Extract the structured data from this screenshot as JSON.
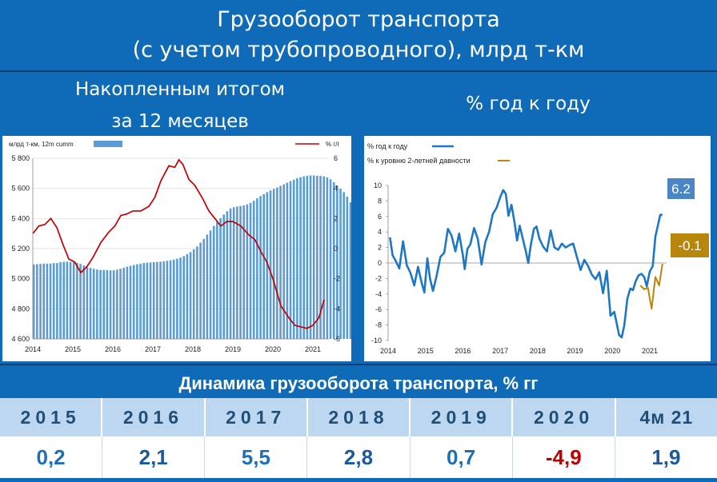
{
  "title": {
    "line1": "Грузооборот транспорта",
    "line2": "(с учетом трубопроводного), млрд т-км"
  },
  "left_heading": {
    "line1": "Накопленным итогом",
    "line2": "за 12 месяцев"
  },
  "right_heading": "% год к году",
  "band_title": "Динамика грузооборота транспорта, % гг",
  "summary": {
    "years": [
      "2015",
      "2016",
      "2017",
      "2018",
      "2019",
      "2020",
      "4м 21"
    ],
    "values": [
      "0,2",
      "2,1",
      "5,5",
      "2,8",
      "0,7",
      "-4,9",
      "1,9"
    ]
  },
  "colors": {
    "bars": "#5b9bd5",
    "yoy_line": "#c00000",
    "blue_line": "#1f77c4",
    "gold_line": "#b8860b",
    "accent": "#4a86c5"
  },
  "chart_data": [
    {
      "type": "bar",
      "legend_left": "млрд т-км, 12m cumm",
      "legend_right": "% г/г",
      "y_ticks": [
        "5 800",
        "5 600",
        "5 400",
        "5 200",
        "5 000",
        "4 800",
        "4 600"
      ],
      "y2_ticks": [
        "6",
        "4",
        "2",
        "0",
        "-2",
        "-4",
        "-6"
      ],
      "x_ticks": [
        "2014",
        "2015",
        "2016",
        "2017",
        "2018",
        "2019",
        "2020",
        "2021"
      ],
      "ylim": [
        4600,
        5800
      ],
      "y2lim": [
        -6,
        6
      ],
      "xlim": [
        2014.0,
        2021.4
      ],
      "bars_x_start": 2014.0,
      "bars_step_months": 1,
      "bars": [
        5095,
        5097,
        5098,
        5100,
        5100,
        5101,
        5103,
        5104,
        5110,
        5112,
        5113,
        5111,
        5109,
        5105,
        5098,
        5088,
        5079,
        5072,
        5066,
        5061,
        5058,
        5058,
        5057,
        5055,
        5056,
        5060,
        5066,
        5073,
        5080,
        5086,
        5091,
        5096,
        5100,
        5104,
        5107,
        5108,
        5110,
        5111,
        5113,
        5116,
        5119,
        5122,
        5127,
        5133,
        5140,
        5150,
        5163,
        5177,
        5195,
        5214,
        5240,
        5265,
        5293,
        5320,
        5350,
        5377,
        5402,
        5426,
        5448,
        5467,
        5475,
        5480,
        5483,
        5487,
        5494,
        5504,
        5518,
        5534,
        5549,
        5562,
        5575,
        5586,
        5596,
        5606,
        5617,
        5627,
        5638,
        5648,
        5658,
        5667,
        5674,
        5680,
        5684,
        5686,
        5686,
        5684,
        5683,
        5680,
        5673,
        5660,
        5641,
        5620,
        5599,
        5575,
        5545,
        5508,
        5470,
        5437,
        5415,
        5403,
        5394,
        5389,
        5386,
        5386,
        5388,
        5395,
        5412,
        5427,
        5432
      ],
      "series": [
        {
          "name": "% г/г",
          "x": [
            2014.0,
            2014.15,
            2014.3,
            2014.45,
            2014.6,
            2014.75,
            2014.9,
            2015.05,
            2015.2,
            2015.35,
            2015.5,
            2015.7,
            2015.9,
            2016.05,
            2016.2,
            2016.35,
            2016.5,
            2016.7,
            2016.9,
            2017.05,
            2017.2,
            2017.4,
            2017.55,
            2017.65,
            2017.75,
            2017.9,
            2018.05,
            2018.25,
            2018.4,
            2018.55,
            2018.7,
            2018.85,
            2019.0,
            2019.2,
            2019.4,
            2019.55,
            2019.7,
            2019.85,
            2020.0,
            2020.2,
            2020.4,
            2020.55,
            2020.7,
            2020.85,
            2021.0,
            2021.15,
            2021.28
          ],
          "values": [
            1.0,
            1.5,
            1.6,
            2.0,
            1.4,
            0.3,
            -0.7,
            -0.9,
            -1.6,
            -1.2,
            -0.6,
            0.4,
            1.1,
            1.5,
            2.2,
            2.3,
            2.5,
            2.5,
            2.8,
            3.4,
            4.5,
            5.5,
            5.4,
            5.9,
            5.6,
            4.6,
            4.2,
            3.3,
            2.5,
            2.0,
            1.5,
            1.8,
            1.8,
            1.5,
            0.9,
            0.6,
            -0.2,
            -0.9,
            -2.0,
            -3.8,
            -4.6,
            -5.1,
            -5.2,
            -5.3,
            -5.1,
            -4.6,
            -3.4
          ]
        }
      ]
    },
    {
      "type": "line",
      "legend": [
        "% год к году",
        "% к уровню 2-летней давности"
      ],
      "y_ticks": [
        "10",
        "8",
        "6",
        "4",
        "2",
        "0",
        "-2",
        "-4",
        "-6",
        "-8",
        "-10"
      ],
      "x_ticks": [
        "2014",
        "2015",
        "2016",
        "2017",
        "2018",
        "2019",
        "2020",
        "2021"
      ],
      "ylim": [
        -10,
        10
      ],
      "xlim": [
        2014.0,
        2021.45
      ],
      "series": [
        {
          "name": "% год к году",
          "x": [
            2014.05,
            2014.12,
            2014.2,
            2014.3,
            2014.4,
            2014.5,
            2014.6,
            2014.7,
            2014.8,
            2014.9,
            2014.97,
            2015.05,
            2015.12,
            2015.2,
            2015.3,
            2015.4,
            2015.5,
            2015.6,
            2015.7,
            2015.8,
            2015.9,
            2016.0,
            2016.05,
            2016.12,
            2016.2,
            2016.3,
            2016.4,
            2016.5,
            2016.6,
            2016.7,
            2016.8,
            2016.9,
            2017.0,
            2017.08,
            2017.15,
            2017.22,
            2017.3,
            2017.38,
            2017.45,
            2017.52,
            2017.6,
            2017.68,
            2017.75,
            2017.82,
            2017.9,
            2017.97,
            2018.05,
            2018.15,
            2018.25,
            2018.35,
            2018.45,
            2018.55,
            2018.65,
            2018.75,
            2018.85,
            2018.95,
            2019.05,
            2019.15,
            2019.25,
            2019.35,
            2019.45,
            2019.55,
            2019.65,
            2019.75,
            2019.85,
            2019.95,
            2020.05,
            2020.12,
            2020.18,
            2020.25,
            2020.32,
            2020.4,
            2020.48,
            2020.55,
            2020.62,
            2020.7,
            2020.78,
            2020.85,
            2020.92,
            2021.0,
            2021.08,
            2021.15,
            2021.22,
            2021.28,
            2021.34
          ],
          "values": [
            3.3,
            1.0,
            0.3,
            -0.7,
            2.8,
            -0.3,
            -1.3,
            -2.9,
            -0.5,
            -2.6,
            -3.8,
            0.6,
            -2.0,
            -3.6,
            -1.6,
            0.8,
            1.3,
            4.4,
            3.5,
            1.5,
            3.8,
            1.0,
            -0.8,
            1.8,
            2.4,
            4.5,
            3.1,
            -0.2,
            2.7,
            4.0,
            6.3,
            7.1,
            8.5,
            9.4,
            8.9,
            6.1,
            7.5,
            5.3,
            2.9,
            4.8,
            3.2,
            1.6,
            0.0,
            2.4,
            4.4,
            4.7,
            3.1,
            2.1,
            1.5,
            4.2,
            2.0,
            1.7,
            2.5,
            2.0,
            2.3,
            2.5,
            0.8,
            -0.9,
            0.4,
            -0.4,
            -1.5,
            -2.1,
            -1.2,
            -3.9,
            -1.0,
            -6.8,
            -6.3,
            -7.9,
            -9.3,
            -9.6,
            -8.0,
            -4.6,
            -3.3,
            -3.5,
            -2.4,
            -1.6,
            -1.4,
            -1.8,
            -3.0,
            -1.1,
            -0.4,
            3.4,
            4.9,
            6.2,
            6.2
          ]
        },
        {
          "name": "% к уровню 2-летней давности",
          "x": [
            2020.75,
            2020.85,
            2020.95,
            2021.05,
            2021.15,
            2021.25,
            2021.34
          ],
          "values": [
            -2.9,
            -3.4,
            -3.2,
            -5.9,
            -1.8,
            -2.9,
            -0.1
          ]
        }
      ],
      "annotations": [
        "6.2",
        "-0.1"
      ]
    }
  ]
}
